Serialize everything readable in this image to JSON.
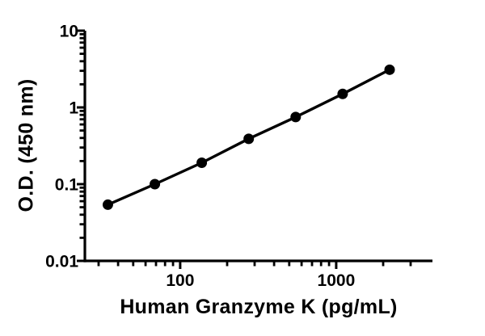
{
  "figure": {
    "background_color": "#ffffff",
    "ink_color": "#000000"
  },
  "chart_data": {
    "type": "line",
    "subtype": "elisa-standard-curve",
    "title": "",
    "xlabel": "Human Granzyme K (pg/mL)",
    "ylabel": "O.D. (450 nm)",
    "x_scale": "log10",
    "y_scale": "log10",
    "xlim": [
      24.5,
      4140
    ],
    "ylim": [
      0.01,
      10
    ],
    "grid": false,
    "legend": "none",
    "x_major_ticks": [
      100,
      1000
    ],
    "x_major_tick_labels": [
      "100",
      "1000"
    ],
    "y_major_ticks": [
      0.01,
      0.1,
      1,
      10
    ],
    "y_major_tick_labels": [
      "0.01",
      "0.1",
      "1",
      "10"
    ],
    "minor_ticks": "log-decade-2-to-9",
    "series": [
      {
        "name": "standard-curve",
        "marker": "filled-circle",
        "marker_color": "#000000",
        "line_color": "#000000",
        "x": [
          34.4,
          68.8,
          137.5,
          275,
          550,
          1100,
          2200
        ],
        "y": [
          0.054,
          0.1,
          0.19,
          0.39,
          0.75,
          1.5,
          3.1
        ]
      }
    ]
  }
}
